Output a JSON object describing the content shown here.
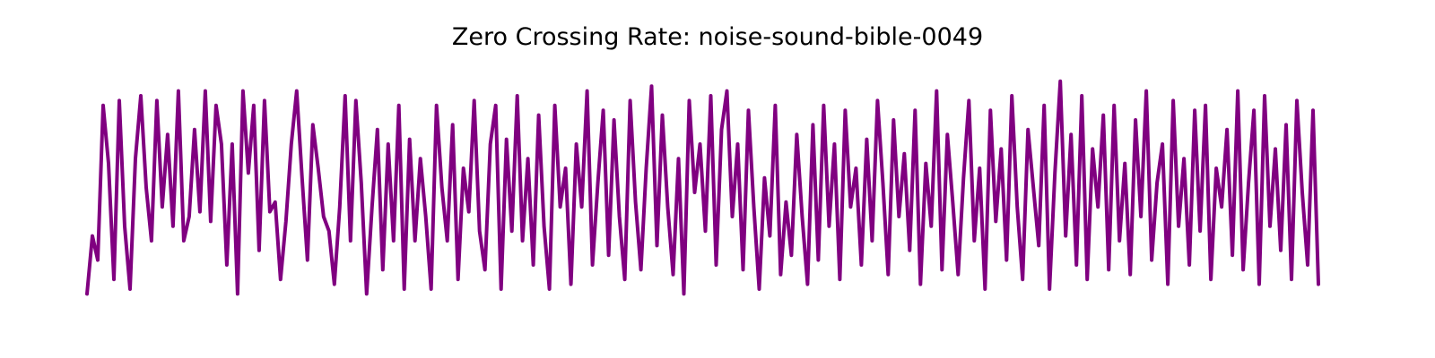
{
  "chart_data": {
    "type": "line",
    "title": "Zero Crossing Rate: noise-sound-bible-0049",
    "xlabel": "",
    "ylabel": "",
    "axes_visible": false,
    "grid": false,
    "legend": "none",
    "ylim": [
      0.0,
      1.0
    ],
    "line_color": "#800080",
    "y": [
      0.08,
      0.32,
      0.22,
      0.86,
      0.62,
      0.14,
      0.88,
      0.36,
      0.1,
      0.64,
      0.9,
      0.52,
      0.3,
      0.88,
      0.44,
      0.74,
      0.36,
      0.92,
      0.3,
      0.4,
      0.76,
      0.42,
      0.92,
      0.38,
      0.86,
      0.7,
      0.2,
      0.7,
      0.08,
      0.92,
      0.58,
      0.86,
      0.26,
      0.88,
      0.42,
      0.46,
      0.14,
      0.38,
      0.7,
      0.92,
      0.56,
      0.22,
      0.78,
      0.6,
      0.4,
      0.34,
      0.12,
      0.44,
      0.9,
      0.3,
      0.88,
      0.54,
      0.08,
      0.44,
      0.76,
      0.18,
      0.7,
      0.3,
      0.86,
      0.1,
      0.72,
      0.3,
      0.64,
      0.4,
      0.1,
      0.86,
      0.52,
      0.3,
      0.78,
      0.14,
      0.6,
      0.42,
      0.88,
      0.34,
      0.18,
      0.7,
      0.86,
      0.1,
      0.72,
      0.34,
      0.9,
      0.3,
      0.64,
      0.2,
      0.82,
      0.36,
      0.1,
      0.86,
      0.44,
      0.6,
      0.12,
      0.7,
      0.44,
      0.92,
      0.2,
      0.54,
      0.84,
      0.24,
      0.8,
      0.4,
      0.14,
      0.88,
      0.46,
      0.18,
      0.6,
      0.94,
      0.28,
      0.82,
      0.44,
      0.16,
      0.64,
      0.08,
      0.88,
      0.5,
      0.7,
      0.34,
      0.9,
      0.2,
      0.76,
      0.92,
      0.4,
      0.7,
      0.18,
      0.84,
      0.44,
      0.1,
      0.56,
      0.32,
      0.86,
      0.16,
      0.46,
      0.24,
      0.74,
      0.4,
      0.12,
      0.78,
      0.22,
      0.86,
      0.36,
      0.7,
      0.14,
      0.84,
      0.44,
      0.6,
      0.2,
      0.72,
      0.3,
      0.88,
      0.54,
      0.16,
      0.8,
      0.4,
      0.66,
      0.26,
      0.84,
      0.12,
      0.62,
      0.36,
      0.92,
      0.18,
      0.74,
      0.46,
      0.16,
      0.56,
      0.88,
      0.3,
      0.6,
      0.1,
      0.84,
      0.38,
      0.68,
      0.22,
      0.9,
      0.44,
      0.14,
      0.76,
      0.52,
      0.28,
      0.86,
      0.1,
      0.58,
      0.96,
      0.32,
      0.74,
      0.2,
      0.9,
      0.14,
      0.68,
      0.44,
      0.82,
      0.18,
      0.86,
      0.3,
      0.62,
      0.16,
      0.8,
      0.4,
      0.92,
      0.22,
      0.54,
      0.7,
      0.12,
      0.88,
      0.36,
      0.64,
      0.2,
      0.84,
      0.34,
      0.86,
      0.14,
      0.6,
      0.44,
      0.76,
      0.24,
      0.92,
      0.18,
      0.54,
      0.84,
      0.12,
      0.9,
      0.36,
      0.68,
      0.26,
      0.78,
      0.14,
      0.88,
      0.5,
      0.2,
      0.84,
      0.12
    ]
  }
}
